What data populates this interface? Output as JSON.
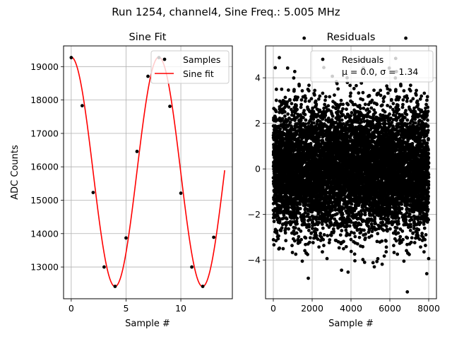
{
  "suptitle": "Run 1254, channel4, Sine Freq.: 5.005 MHz",
  "chart_data": [
    {
      "type": "line",
      "title": "Sine Fit",
      "xlabel": "Sample #",
      "ylabel": "ADC Counts",
      "xlim": [
        -0.7,
        14.7
      ],
      "ylim": [
        12050,
        19620
      ],
      "xticks": [
        0,
        5,
        10
      ],
      "yticks": [
        13000,
        14000,
        15000,
        16000,
        17000,
        18000,
        19000
      ],
      "grid": true,
      "legend_position": "top-right",
      "series": [
        {
          "name": "Samples",
          "style": "points",
          "color": "#000000",
          "x": [
            0,
            1,
            2,
            3,
            4,
            5,
            6,
            7,
            8,
            9,
            10,
            11,
            12,
            13
          ],
          "y": [
            19270,
            17830,
            15230,
            13000,
            12420,
            13870,
            16460,
            18710,
            19270,
            17810,
            15210,
            13000,
            12420,
            13890
          ]
        },
        {
          "name": "Sine fit",
          "style": "line",
          "color": "#ff0000",
          "fit": {
            "offset": 15850,
            "amplitude": 3435,
            "period": 7.99,
            "phase_deg": 90,
            "x_range": [
              0,
              14
            ]
          }
        }
      ]
    },
    {
      "type": "scatter",
      "title": "Residuals",
      "xlabel": "Sample #",
      "ylabel": "",
      "xlim": [
        -400,
        8400
      ],
      "ylim": [
        -5.7,
        5.4
      ],
      "xticks": [
        0,
        2000,
        4000,
        6000,
        8000
      ],
      "yticks": [
        -4,
        -2,
        0,
        2,
        4
      ],
      "grid": true,
      "legend_position": "top-right",
      "series": [
        {
          "name": "Residuals",
          "label_line2": "μ = 0.0, σ = 1.34",
          "color": "#000000",
          "n_points": 8000,
          "mean": 0.0,
          "std": 1.34,
          "outliers": [
            {
              "x": 2600,
              "y": 4.45
            },
            {
              "x": 6300,
              "y": 4.85
            },
            {
              "x": 6900,
              "y": -5.4
            },
            {
              "x": 1800,
              "y": -4.8
            },
            {
              "x": 5200,
              "y": -4.3
            },
            {
              "x": 7900,
              "y": -4.6
            },
            {
              "x": 3800,
              "y": 4.0
            },
            {
              "x": 4700,
              "y": -4.1
            }
          ]
        }
      ]
    }
  ]
}
